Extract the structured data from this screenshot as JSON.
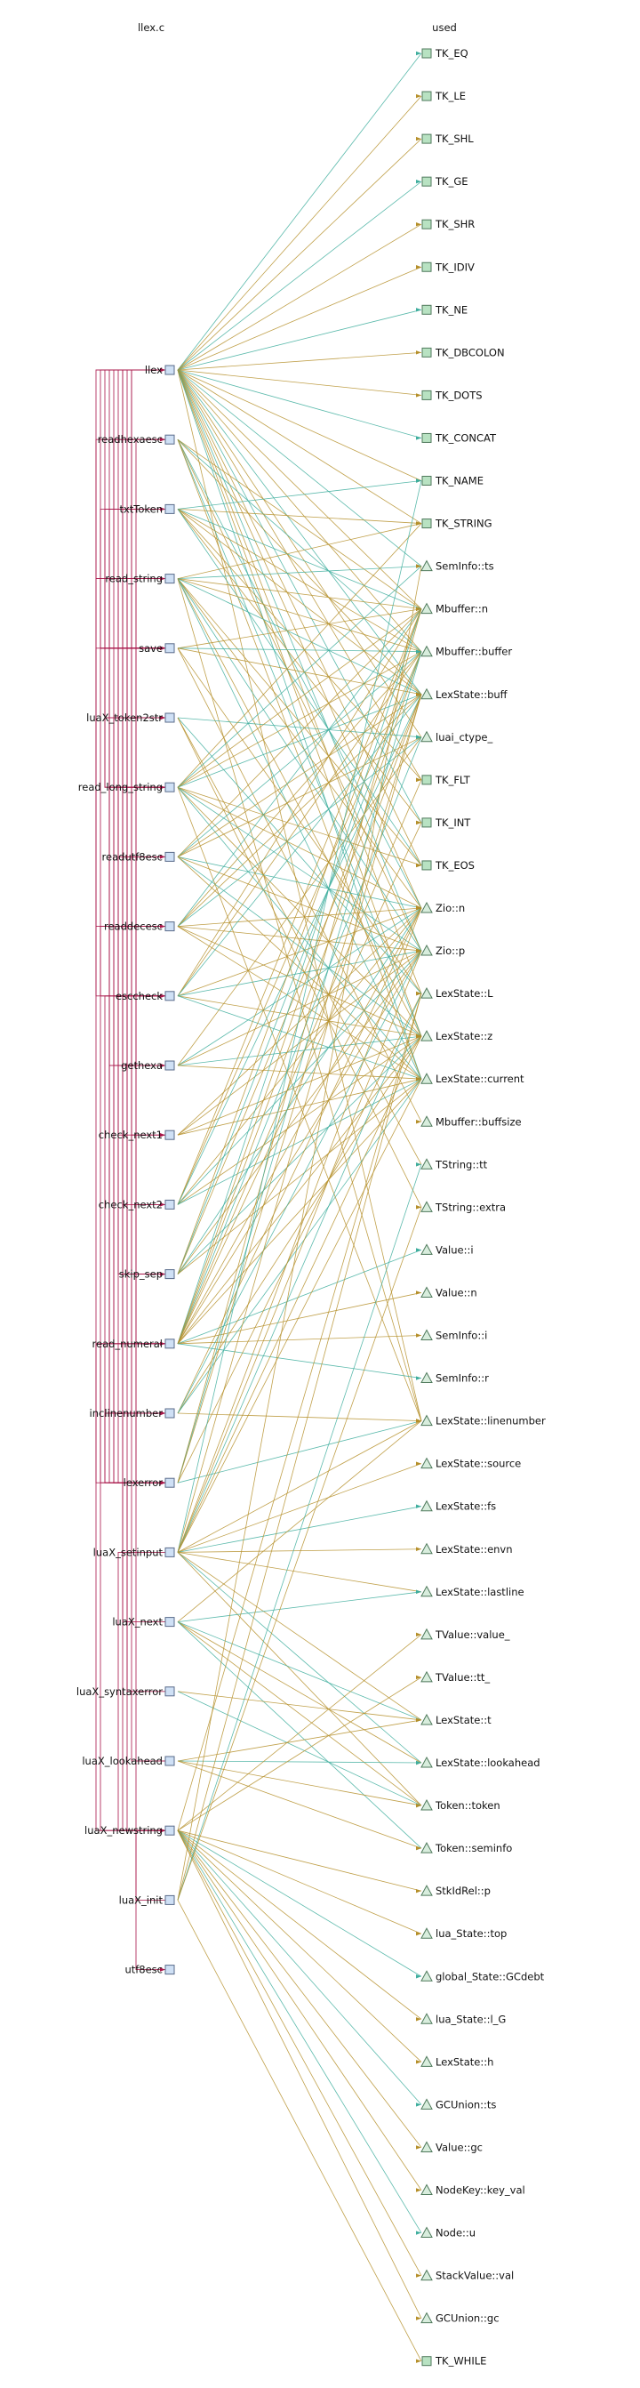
{
  "headers": {
    "left": "llex.c",
    "right": "used"
  },
  "colors": {
    "function_node_fill": "#cfe0f5",
    "function_node_stroke": "#5a6b8a",
    "constant_node_fill": "#b8e2c2",
    "constant_node_stroke": "#4f7a5c",
    "member_node_fill": "#d8eddd",
    "member_node_stroke": "#4f7a5c",
    "call_edge": "#a8174a",
    "uses_edge_a": "#b58f2a",
    "uses_edge_b": "#3fae9e"
  },
  "functions": [
    "llex",
    "readhexaesc",
    "txtToken",
    "read_string",
    "save",
    "luaX_token2str",
    "read_long_string",
    "readutf8esc",
    "readdecesc",
    "esccheck",
    "gethexa",
    "check_next1",
    "check_next2",
    "skip_sep",
    "read_numeral",
    "inclinenumber",
    "lexerror",
    "luaX_setinput",
    "luaX_next",
    "luaX_syntaxerror",
    "luaX_lookahead",
    "luaX_newstring",
    "luaX_init",
    "utf8esc"
  ],
  "used": [
    {
      "label": "TK_EQ",
      "kind": "constant"
    },
    {
      "label": "TK_LE",
      "kind": "constant"
    },
    {
      "label": "TK_SHL",
      "kind": "constant"
    },
    {
      "label": "TK_GE",
      "kind": "constant"
    },
    {
      "label": "TK_SHR",
      "kind": "constant"
    },
    {
      "label": "TK_IDIV",
      "kind": "constant"
    },
    {
      "label": "TK_NE",
      "kind": "constant"
    },
    {
      "label": "TK_DBCOLON",
      "kind": "constant"
    },
    {
      "label": "TK_DOTS",
      "kind": "constant"
    },
    {
      "label": "TK_CONCAT",
      "kind": "constant"
    },
    {
      "label": "TK_NAME",
      "kind": "constant"
    },
    {
      "label": "TK_STRING",
      "kind": "constant"
    },
    {
      "label": "SemInfo::ts",
      "kind": "member"
    },
    {
      "label": "Mbuffer::n",
      "kind": "member"
    },
    {
      "label": "Mbuffer::buffer",
      "kind": "member"
    },
    {
      "label": "LexState::buff",
      "kind": "member"
    },
    {
      "label": "luai_ctype_",
      "kind": "member"
    },
    {
      "label": "TK_FLT",
      "kind": "constant"
    },
    {
      "label": "TK_INT",
      "kind": "constant"
    },
    {
      "label": "TK_EOS",
      "kind": "constant"
    },
    {
      "label": "Zio::n",
      "kind": "member"
    },
    {
      "label": "Zio::p",
      "kind": "member"
    },
    {
      "label": "LexState::L",
      "kind": "member"
    },
    {
      "label": "LexState::z",
      "kind": "member"
    },
    {
      "label": "LexState::current",
      "kind": "member"
    },
    {
      "label": "Mbuffer::buffsize",
      "kind": "member"
    },
    {
      "label": "TString::tt",
      "kind": "member"
    },
    {
      "label": "TString::extra",
      "kind": "member"
    },
    {
      "label": "Value::i",
      "kind": "member"
    },
    {
      "label": "Value::n",
      "kind": "member"
    },
    {
      "label": "SemInfo::i",
      "kind": "member"
    },
    {
      "label": "SemInfo::r",
      "kind": "member"
    },
    {
      "label": "LexState::linenumber",
      "kind": "member"
    },
    {
      "label": "LexState::source",
      "kind": "member"
    },
    {
      "label": "LexState::fs",
      "kind": "member"
    },
    {
      "label": "LexState::envn",
      "kind": "member"
    },
    {
      "label": "LexState::lastline",
      "kind": "member"
    },
    {
      "label": "TValue::value_",
      "kind": "member"
    },
    {
      "label": "TValue::tt_",
      "kind": "member"
    },
    {
      "label": "LexState::t",
      "kind": "member"
    },
    {
      "label": "LexState::lookahead",
      "kind": "member"
    },
    {
      "label": "Token::token",
      "kind": "member"
    },
    {
      "label": "Token::seminfo",
      "kind": "member"
    },
    {
      "label": "StkIdRel::p",
      "kind": "member"
    },
    {
      "label": "lua_State::top",
      "kind": "member"
    },
    {
      "label": "global_State::GCdebt",
      "kind": "member"
    },
    {
      "label": "lua_State::l_G",
      "kind": "member"
    },
    {
      "label": "LexState::h",
      "kind": "member"
    },
    {
      "label": "GCUnion::ts",
      "kind": "member"
    },
    {
      "label": "Value::gc",
      "kind": "member"
    },
    {
      "label": "NodeKey::key_val",
      "kind": "member"
    },
    {
      "label": "Node::u",
      "kind": "member"
    },
    {
      "label": "StackValue::val",
      "kind": "member"
    },
    {
      "label": "GCUnion::gc",
      "kind": "member"
    },
    {
      "label": "TK_WHILE",
      "kind": "constant"
    }
  ],
  "calls": [
    [
      "llex",
      "read_string"
    ],
    [
      "llex",
      "save"
    ],
    [
      "llex",
      "read_long_string"
    ],
    [
      "llex",
      "read_numeral"
    ],
    [
      "llex",
      "inclinenumber"
    ],
    [
      "llex",
      "lexerror"
    ],
    [
      "llex",
      "skip_sep"
    ],
    [
      "llex",
      "luaX_newstring"
    ],
    [
      "llex",
      "check_next1"
    ],
    [
      "readhexaesc",
      "gethexa"
    ],
    [
      "readhexaesc",
      "esccheck"
    ],
    [
      "txtToken",
      "save"
    ],
    [
      "txtToken",
      "luaX_token2str"
    ],
    [
      "read_string",
      "save"
    ],
    [
      "read_string",
      "readhexaesc"
    ],
    [
      "read_string",
      "readutf8esc"
    ],
    [
      "read_string",
      "readdecesc"
    ],
    [
      "read_string",
      "esccheck"
    ],
    [
      "read_string",
      "inclinenumber"
    ],
    [
      "read_string",
      "lexerror"
    ],
    [
      "read_string",
      "luaX_newstring"
    ],
    [
      "save",
      "lexerror"
    ],
    [
      "read_long_string",
      "save"
    ],
    [
      "read_long_string",
      "inclinenumber"
    ],
    [
      "read_long_string",
      "lexerror"
    ],
    [
      "read_long_string",
      "skip_sep"
    ],
    [
      "read_long_string",
      "luaX_newstring"
    ],
    [
      "readutf8esc",
      "gethexa"
    ],
    [
      "readutf8esc",
      "esccheck"
    ],
    [
      "readutf8esc",
      "utf8esc"
    ],
    [
      "readdecesc",
      "save"
    ],
    [
      "readdecesc",
      "esccheck"
    ],
    [
      "esccheck",
      "lexerror"
    ],
    [
      "gethexa",
      "save"
    ],
    [
      "gethexa",
      "esccheck"
    ],
    [
      "check_next1",
      "save"
    ],
    [
      "check_next2",
      "save"
    ],
    [
      "skip_sep",
      "save"
    ],
    [
      "read_numeral",
      "save"
    ],
    [
      "read_numeral",
      "check_next2"
    ],
    [
      "read_numeral",
      "lexerror"
    ],
    [
      "read_numeral",
      "luaX_newstring"
    ],
    [
      "inclinenumber",
      "lexerror"
    ],
    [
      "lexerror",
      "txtToken"
    ],
    [
      "lexerror",
      "luaX_token2str"
    ],
    [
      "luaX_setinput",
      "luaX_newstring"
    ],
    [
      "luaX_next",
      "llex"
    ],
    [
      "luaX_syntaxerror",
      "lexerror"
    ],
    [
      "luaX_lookahead",
      "llex"
    ],
    [
      "luaX_init",
      "luaX_newstring"
    ]
  ],
  "uses": [
    [
      "llex",
      [
        0,
        1,
        2,
        3,
        4,
        5,
        6,
        7,
        8,
        9,
        10,
        11,
        12,
        13,
        14,
        15,
        16,
        17,
        18,
        19,
        20,
        21,
        22,
        23,
        24,
        32
      ]
    ],
    [
      "readhexaesc",
      [
        13,
        14,
        15,
        20,
        21,
        23,
        24
      ]
    ],
    [
      "txtToken",
      [
        11,
        10,
        13,
        14,
        15,
        17,
        18,
        19
      ]
    ],
    [
      "read_string",
      [
        11,
        12,
        13,
        14,
        15,
        19,
        20,
        21,
        23,
        24,
        32
      ]
    ],
    [
      "save",
      [
        13,
        14,
        15,
        22,
        25
      ]
    ],
    [
      "luaX_token2str",
      [
        16,
        22,
        26,
        27
      ]
    ],
    [
      "read_long_string",
      [
        11,
        12,
        13,
        14,
        15,
        19,
        20,
        21,
        23,
        24,
        32
      ]
    ],
    [
      "readutf8esc",
      [
        13,
        14,
        15,
        16,
        20,
        21,
        23,
        24
      ]
    ],
    [
      "readdecesc",
      [
        13,
        14,
        15,
        16,
        20,
        21,
        23,
        24
      ]
    ],
    [
      "esccheck",
      [
        13,
        14,
        15,
        20,
        21,
        23,
        24
      ]
    ],
    [
      "gethexa",
      [
        16,
        20,
        21,
        23,
        24
      ]
    ],
    [
      "check_next1",
      [
        20,
        21,
        23,
        24
      ]
    ],
    [
      "check_next2",
      [
        13,
        14,
        15,
        20,
        21,
        23,
        24
      ]
    ],
    [
      "skip_sep",
      [
        13,
        14,
        15,
        20,
        21,
        23,
        24
      ]
    ],
    [
      "read_numeral",
      [
        13,
        14,
        15,
        16,
        17,
        18,
        20,
        21,
        23,
        24,
        28,
        29,
        30,
        31
      ]
    ],
    [
      "inclinenumber",
      [
        20,
        21,
        23,
        24,
        32
      ]
    ],
    [
      "lexerror",
      [
        13,
        14,
        15,
        22,
        32
      ]
    ],
    [
      "luaX_setinput",
      [
        10,
        15,
        20,
        21,
        22,
        23,
        24,
        32,
        33,
        34,
        35,
        36,
        39,
        40,
        41
      ]
    ],
    [
      "luaX_next",
      [
        32,
        36,
        39,
        40,
        41,
        42
      ]
    ],
    [
      "luaX_syntaxerror",
      [
        39,
        41
      ]
    ],
    [
      "luaX_lookahead",
      [
        39,
        40,
        41,
        42
      ]
    ],
    [
      "luaX_newstring",
      [
        22,
        37,
        38,
        43,
        44,
        45,
        46,
        47,
        48,
        49,
        50,
        51,
        52,
        53
      ]
    ],
    [
      "luaX_init",
      [
        12,
        22,
        26,
        27,
        54
      ]
    ],
    [
      "utf8esc",
      []
    ]
  ]
}
